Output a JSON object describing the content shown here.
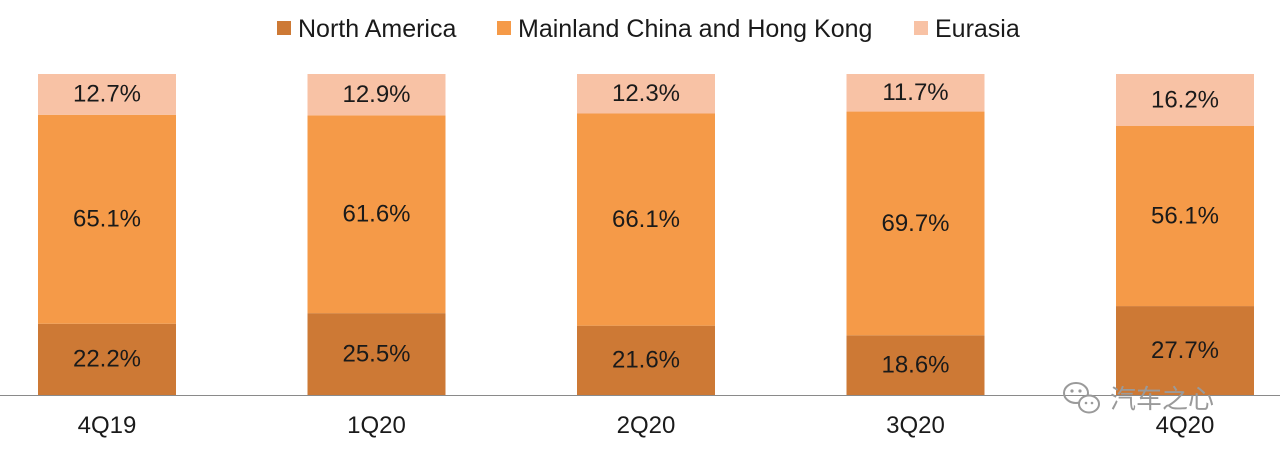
{
  "chart_data": {
    "type": "bar",
    "stacked": true,
    "percent_stacked": true,
    "categories": [
      "4Q19",
      "1Q20",
      "2Q20",
      "3Q20",
      "4Q20"
    ],
    "series": [
      {
        "name": "North America",
        "color": "#CD7935",
        "values": [
          22.2,
          25.5,
          21.6,
          18.6,
          27.7
        ]
      },
      {
        "name": "Mainland China and Hong Kong",
        "color": "#F59A48",
        "values": [
          65.1,
          61.6,
          66.1,
          69.7,
          56.1
        ]
      },
      {
        "name": "Eurasia",
        "color": "#F8C2A5",
        "values": [
          12.7,
          12.9,
          12.3,
          11.7,
          16.2
        ]
      }
    ],
    "value_suffix": "%",
    "ylim": [
      0,
      100
    ],
    "grid": false,
    "legend": "top-center",
    "title": "",
    "xlabel": "",
    "ylabel": ""
  },
  "watermark": {
    "text": "汽车之心",
    "icon": "wechat-icon"
  }
}
